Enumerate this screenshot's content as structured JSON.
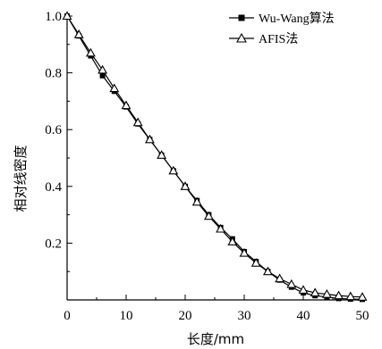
{
  "chart_data": {
    "type": "line",
    "xlabel": "长度/mm",
    "ylabel": "相对线密度",
    "xlim": [
      0,
      50
    ],
    "ylim": [
      0,
      1.0
    ],
    "xticks": [
      "0",
      "10",
      "20",
      "30",
      "40",
      "50"
    ],
    "yticks": [
      "0.2",
      "0.4",
      "0.6",
      "0.8",
      "1.0"
    ],
    "grid": false,
    "legend_position": "top-right",
    "series": [
      {
        "name": "Wu-Wang算法",
        "marker": "square",
        "x": [
          0,
          2,
          4,
          6,
          8,
          10,
          12,
          14,
          16,
          18,
          20,
          22,
          24,
          26,
          28,
          30,
          32,
          34,
          36,
          38,
          40,
          42,
          44,
          46,
          48,
          50
        ],
        "y": [
          1.0,
          0.93,
          0.86,
          0.79,
          0.735,
          0.68,
          0.62,
          0.565,
          0.51,
          0.455,
          0.4,
          0.35,
          0.3,
          0.255,
          0.215,
          0.17,
          0.135,
          0.1,
          0.07,
          0.045,
          0.025,
          0.015,
          0.01,
          0.005,
          0.003,
          0.002
        ]
      },
      {
        "name": "AFIS法",
        "marker": "triangle-open",
        "x": [
          0,
          2,
          4,
          6,
          8,
          10,
          12,
          14,
          16,
          18,
          20,
          22,
          24,
          26,
          28,
          30,
          32,
          34,
          36,
          38,
          40,
          42,
          44,
          46,
          48,
          50
        ],
        "y": [
          1.0,
          0.935,
          0.87,
          0.81,
          0.745,
          0.685,
          0.625,
          0.565,
          0.51,
          0.455,
          0.4,
          0.345,
          0.295,
          0.25,
          0.205,
          0.165,
          0.13,
          0.1,
          0.075,
          0.055,
          0.035,
          0.025,
          0.02,
          0.015,
          0.012,
          0.01
        ]
      }
    ]
  }
}
